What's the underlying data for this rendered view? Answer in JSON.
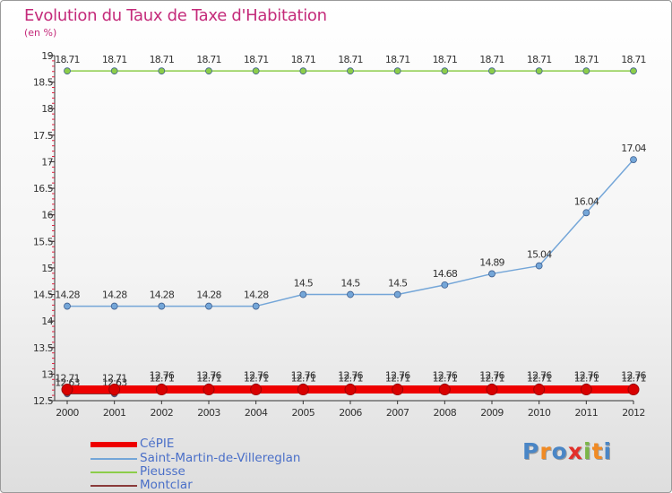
{
  "title": "Evolution du Taux de Taxe d'Habitation",
  "unit": "(en %)",
  "brand": {
    "name": "Proxiti",
    "letters": [
      "P",
      "r",
      "o",
      "x",
      "i",
      "t",
      "i"
    ],
    "colors": [
      "#4a86c6",
      "#f08a24",
      "#4a86c6",
      "#e2302a",
      "#7ab648",
      "#f08a24",
      "#4a86c6"
    ]
  },
  "chart_data": {
    "type": "line",
    "x": [
      2000,
      2001,
      2002,
      2003,
      2004,
      2005,
      2006,
      2007,
      2008,
      2009,
      2010,
      2011,
      2012
    ],
    "ylim": [
      12.5,
      19
    ],
    "yticks": [
      12.5,
      13,
      13.5,
      14,
      14.5,
      15,
      15.5,
      16,
      16.5,
      17,
      17.5,
      18,
      18.5,
      19
    ],
    "grid": false,
    "legend_position": "bottom-left",
    "series": [
      {
        "name": "Pieusse",
        "color": "#8ccd4a",
        "values": [
          18.71,
          18.71,
          18.71,
          18.71,
          18.71,
          18.71,
          18.71,
          18.71,
          18.71,
          18.71,
          18.71,
          18.71,
          18.71
        ],
        "labels": [
          "18.71",
          "18.71",
          "18.71",
          "18.71",
          "18.71",
          "18.71",
          "18.71",
          "18.71",
          "18.71",
          "18.71",
          "18.71",
          "18.71",
          "18.71"
        ]
      },
      {
        "name": "Saint-Martin-de-Villereglan",
        "color": "#74a6d8",
        "values": [
          14.28,
          14.28,
          14.28,
          14.28,
          14.28,
          14.5,
          14.5,
          14.5,
          14.68,
          14.89,
          15.04,
          16.04,
          17.04
        ],
        "labels": [
          "14.28",
          "14.28",
          "14.28",
          "14.28",
          "14.28",
          "14.5",
          "14.5",
          "14.5",
          "14.68",
          "14.89",
          "15.04",
          "16.04",
          "17.04"
        ]
      },
      {
        "name": "Montclar",
        "color": "#8a3a3a",
        "values": [
          12.63,
          12.63,
          12.76,
          12.76,
          12.76,
          12.76,
          12.76,
          12.76,
          12.76,
          12.76,
          12.76,
          12.76,
          12.76
        ],
        "labels": [
          "12.63",
          "12.63",
          "12.76",
          "12.76",
          "12.76",
          "12.76",
          "12.76",
          "12.76",
          "12.76",
          "12.76",
          "12.76",
          "12.76",
          "12.76"
        ]
      },
      {
        "name": "CéPIE",
        "color": "#ee0000",
        "values": [
          12.71,
          12.71,
          12.71,
          12.71,
          12.71,
          12.71,
          12.71,
          12.71,
          12.71,
          12.71,
          12.71,
          12.71,
          12.71
        ],
        "labels": [
          "12.71",
          "12.71",
          "12.71",
          "12.71",
          "12.71",
          "12.71",
          "12.71",
          "12.71",
          "12.71",
          "12.71",
          "12.71",
          "12.71",
          "12.71"
        ]
      }
    ],
    "legend": [
      {
        "name": "CéPIE",
        "color": "#ee0000"
      },
      {
        "name": "Saint-Martin-de-Villereglan",
        "color": "#74a6d8"
      },
      {
        "name": "Pieusse",
        "color": "#8ccd4a"
      },
      {
        "name": "Montclar",
        "color": "#8a3a3a"
      }
    ]
  }
}
